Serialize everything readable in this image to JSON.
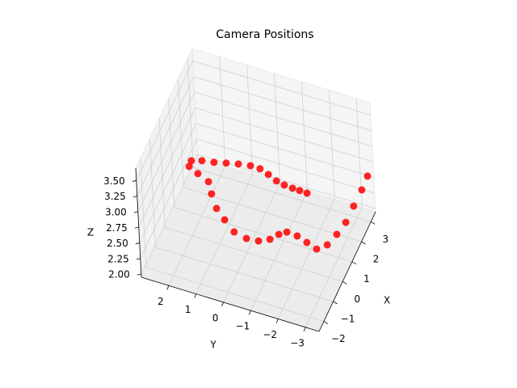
{
  "chart_data": {
    "type": "scatter3d",
    "title": "Camera Positions",
    "xlabel": "X",
    "ylabel": "Y",
    "zlabel": "Z",
    "color": "#ff0000",
    "grid": true,
    "x": [
      3.34,
      2.93,
      2.38,
      1.83,
      1.4,
      1.0,
      0.81,
      1.02,
      1.23,
      1.29,
      1.08,
      0.72,
      0.44,
      0.28,
      0.19,
      0.19,
      0.04,
      -0.06,
      -0.24,
      -0.7,
      -1.04,
      -1.03,
      -1.02,
      -0.93,
      -0.72,
      -0.49,
      -0.24,
      -0.06,
      -0.01,
      0.03,
      0.17,
      0.33,
      0.51,
      0.71
    ],
    "y": [
      -3.33,
      -3.25,
      -3.13,
      -3.02,
      -2.83,
      -2.61,
      -2.28,
      -1.85,
      -1.42,
      -1.02,
      -0.8,
      -0.6,
      -0.28,
      0.1,
      0.51,
      0.84,
      1.06,
      1.18,
      1.2,
      1.4,
      1.58,
      1.49,
      1.1,
      0.69,
      0.32,
      -0.04,
      -0.39,
      -0.67,
      -0.95,
      -1.22,
      -1.45,
      -1.69,
      -1.88,
      -2.07
    ],
    "z": [
      2.55,
      2.45,
      2.35,
      2.25,
      2.17,
      2.1,
      2.05,
      2.03,
      2.01,
      2.0,
      2.0,
      2.01,
      2.03,
      2.07,
      2.15,
      2.3,
      2.5,
      2.75,
      3.0,
      3.25,
      3.45,
      3.55,
      3.6,
      3.6,
      3.57,
      3.53,
      3.47,
      3.4,
      3.33,
      3.25,
      3.17,
      3.1,
      3.03,
      2.95
    ],
    "xlim": [
      -2.5,
      3.5
    ],
    "ylim": [
      -3.5,
      3.0
    ],
    "zlim": [
      1.95,
      3.7
    ],
    "xticks": [
      {
        "value": -2,
        "label": "−2"
      },
      {
        "value": -1,
        "label": "−1"
      },
      0,
      1,
      2,
      3
    ],
    "yticks": [
      2,
      1,
      0,
      {
        "value": -1,
        "label": "−1"
      },
      {
        "value": -2,
        "label": "−2"
      },
      {
        "value": -3,
        "label": "−3"
      }
    ],
    "zticks": [
      {
        "value": 2,
        "label": "2.00"
      },
      {
        "value": 2.25,
        "label": "2.25"
      },
      {
        "value": 2.5,
        "label": "2.50"
      },
      {
        "value": 2.75,
        "label": "2.75"
      },
      {
        "value": 3,
        "label": "3.00"
      },
      {
        "value": 3.25,
        "label": "3.25"
      },
      {
        "value": 3.5,
        "label": "3.50"
      }
    ]
  }
}
